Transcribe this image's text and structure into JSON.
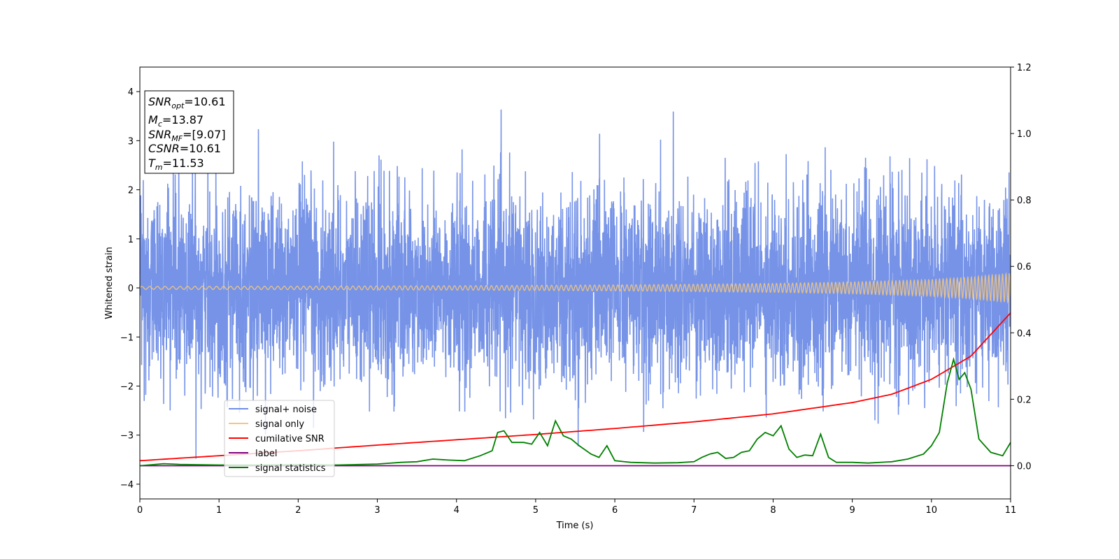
{
  "chart_data": {
    "type": "line",
    "xlabel": "Time (s)",
    "ylabel": "Whitened strain",
    "xlim": [
      0,
      11
    ],
    "ylim": [
      -4.3,
      4.5
    ],
    "y2lim": [
      -0.1,
      1.2
    ],
    "x_ticks": [
      0,
      1,
      2,
      3,
      4,
      5,
      6,
      7,
      8,
      9,
      10,
      11
    ],
    "y_ticks": [
      -4,
      -3,
      -2,
      -1,
      0,
      1,
      2,
      3,
      4
    ],
    "y2_ticks": [
      0.0,
      0.2,
      0.4,
      0.6,
      0.8,
      1.0,
      1.2
    ],
    "legend_position": "lower-left",
    "info_box": {
      "snr_opt": {
        "symbol": "SNR",
        "sub": "opt",
        "value": "=10.61"
      },
      "mc": {
        "symbol": "M",
        "sub": "c",
        "value": "=13.87"
      },
      "snr_mf": {
        "symbol": "SNR",
        "sub": "MF",
        "value": "=[9.07]"
      },
      "csnr": {
        "symbol": "CSNR",
        "sub": "",
        "value": "=10.61"
      },
      "tm": {
        "symbol": "T",
        "sub": "m",
        "value": "=11.53"
      }
    },
    "series": [
      {
        "name": "signal+ noise",
        "color": "#6f8de6",
        "axis": "left",
        "description_kind": "noise",
        "noise_std": 0.95,
        "noise_max_abs": 4.15
      },
      {
        "name": "signal only",
        "color": "#f5c77e",
        "axis": "left",
        "description_kind": "chirp",
        "x": [
          0,
          2,
          4,
          6,
          8,
          9,
          10,
          10.5,
          11
        ],
        "amplitude": [
          0.03,
          0.035,
          0.045,
          0.06,
          0.09,
          0.12,
          0.17,
          0.22,
          0.3
        ]
      },
      {
        "name": "cumilative SNR",
        "color": "#ff0000",
        "axis": "right",
        "x": [
          0,
          1,
          2,
          3,
          4,
          5,
          6,
          7,
          8,
          9,
          9.5,
          10,
          10.5,
          11
        ],
        "values": [
          0.015,
          0.03,
          0.045,
          0.062,
          0.078,
          0.094,
          0.112,
          0.132,
          0.156,
          0.19,
          0.215,
          0.26,
          0.33,
          0.46
        ]
      },
      {
        "name": "label",
        "color": "#800080",
        "axis": "right",
        "x": [
          0,
          11
        ],
        "values": [
          0.0,
          0.0
        ]
      },
      {
        "name": "signal statistics",
        "color": "#008000",
        "axis": "right",
        "x": [
          0,
          0.3,
          0.5,
          1.0,
          1.5,
          2.0,
          2.5,
          3.0,
          3.3,
          3.5,
          3.7,
          3.9,
          4.1,
          4.3,
          4.45,
          4.52,
          4.6,
          4.7,
          4.85,
          4.95,
          5.05,
          5.15,
          5.25,
          5.35,
          5.45,
          5.55,
          5.7,
          5.8,
          5.9,
          6.0,
          6.2,
          6.5,
          6.8,
          7.0,
          7.1,
          7.2,
          7.3,
          7.4,
          7.5,
          7.6,
          7.7,
          7.8,
          7.9,
          8.0,
          8.1,
          8.2,
          8.3,
          8.4,
          8.5,
          8.6,
          8.7,
          8.8,
          9.0,
          9.2,
          9.5,
          9.7,
          9.9,
          10.0,
          10.1,
          10.2,
          10.28,
          10.35,
          10.42,
          10.5,
          10.6,
          10.75,
          10.9,
          11.0
        ],
        "values": [
          0.0,
          0.006,
          0.004,
          0.002,
          0.002,
          0.003,
          0.002,
          0.005,
          0.01,
          0.012,
          0.02,
          0.017,
          0.015,
          0.03,
          0.045,
          0.1,
          0.105,
          0.07,
          0.07,
          0.065,
          0.1,
          0.06,
          0.135,
          0.09,
          0.08,
          0.06,
          0.035,
          0.025,
          0.06,
          0.015,
          0.01,
          0.008,
          0.009,
          0.012,
          0.025,
          0.035,
          0.04,
          0.022,
          0.025,
          0.04,
          0.045,
          0.08,
          0.1,
          0.09,
          0.12,
          0.05,
          0.025,
          0.032,
          0.03,
          0.095,
          0.025,
          0.01,
          0.01,
          0.008,
          0.012,
          0.02,
          0.035,
          0.06,
          0.1,
          0.25,
          0.32,
          0.26,
          0.28,
          0.23,
          0.08,
          0.04,
          0.03,
          0.07
        ]
      }
    ]
  }
}
